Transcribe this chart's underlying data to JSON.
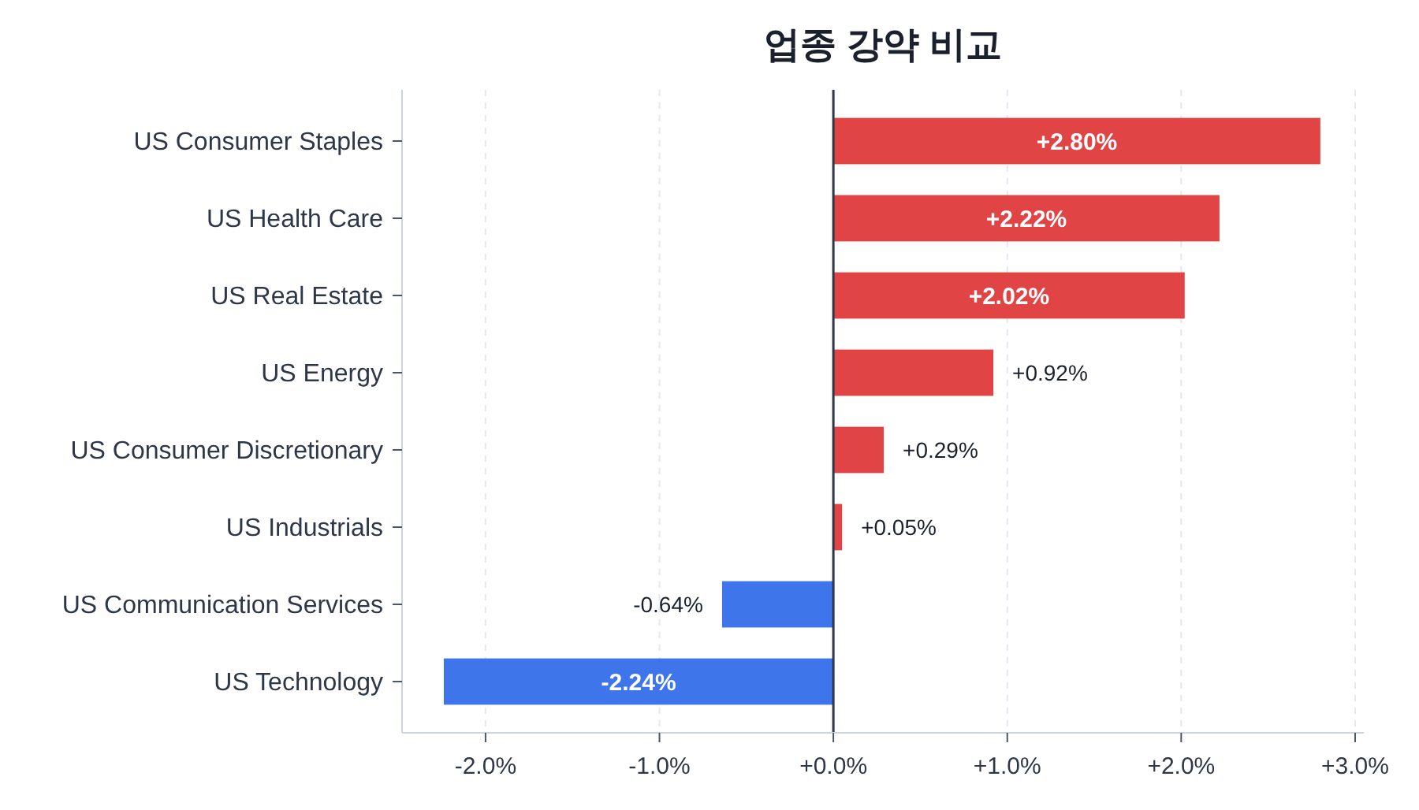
{
  "chart_data": {
    "type": "bar",
    "orientation": "horizontal",
    "title": "업종 강약 비교",
    "categories": [
      "US Consumer Staples",
      "US Health Care",
      "US Real Estate",
      "US Energy",
      "US Consumer Discretionary",
      "US Industrials",
      "US Communication Services",
      "US Technology"
    ],
    "values": [
      2.8,
      2.22,
      2.02,
      0.92,
      0.29,
      0.05,
      -0.64,
      -2.24
    ],
    "colors": [
      "#e04444",
      "#e04444",
      "#e04444",
      "#e04444",
      "#e04444",
      "#e04444",
      "#3f75ea",
      "#3f75ea"
    ],
    "value_labels": [
      "+2.80%",
      "+2.22%",
      "+2.02%",
      "+0.92%",
      "+0.29%",
      "+0.05%",
      "-0.64%",
      "-2.24%"
    ],
    "xlim": [
      -2.48,
      3.05
    ],
    "xticks": [
      {
        "value": -2,
        "label": "-2.0%"
      },
      {
        "value": -1,
        "label": "-1.0%"
      },
      {
        "value": 0,
        "label": "+0.0%"
      },
      {
        "value": 1,
        "label": "+1.0%"
      },
      {
        "value": 2,
        "label": "+2.0%"
      },
      {
        "value": 3,
        "label": "+3.0%"
      }
    ],
    "grid": "x",
    "ref_lines": [
      {
        "axis": "x",
        "value": 0,
        "color": "#2d3748"
      }
    ]
  }
}
